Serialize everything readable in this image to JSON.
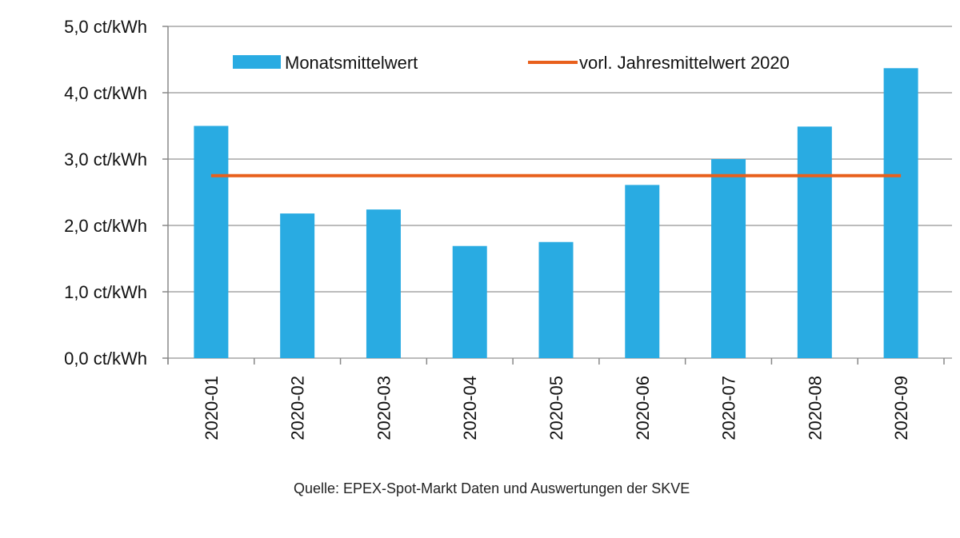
{
  "chart_data": {
    "type": "bar",
    "title": "",
    "xlabel": "",
    "ylabel": "",
    "categories": [
      "2020-01",
      "2020-02",
      "2020-03",
      "2020-04",
      "2020-05",
      "2020-06",
      "2020-07",
      "2020-08",
      "2020-09"
    ],
    "series": [
      {
        "name": "Monatsmittelwert",
        "type": "bar",
        "color": "#29abe2",
        "values": [
          3.5,
          2.18,
          2.24,
          1.69,
          1.75,
          2.61,
          3.0,
          3.49,
          4.37
        ]
      },
      {
        "name": "vorl. Jahresmittelwert 2020",
        "type": "line",
        "color": "#e8601c",
        "values": [
          2.75,
          2.75,
          2.75,
          2.75,
          2.75,
          2.75,
          2.75,
          2.75,
          2.75
        ]
      }
    ],
    "ylim": [
      0,
      5
    ],
    "yticks": [
      0,
      1,
      2,
      3,
      4,
      5
    ],
    "ytick_labels": [
      "0,0 ct/kWh",
      "1,0 ct/kWh",
      "2,0 ct/kWh",
      "3,0 ct/kWh",
      "4,0 ct/kWh",
      "5,0 ct/kWh"
    ],
    "grid": true,
    "legend_position": "top",
    "source_note": "Quelle: EPEX-Spot-Markt Daten und Auswertungen der SKVE"
  }
}
